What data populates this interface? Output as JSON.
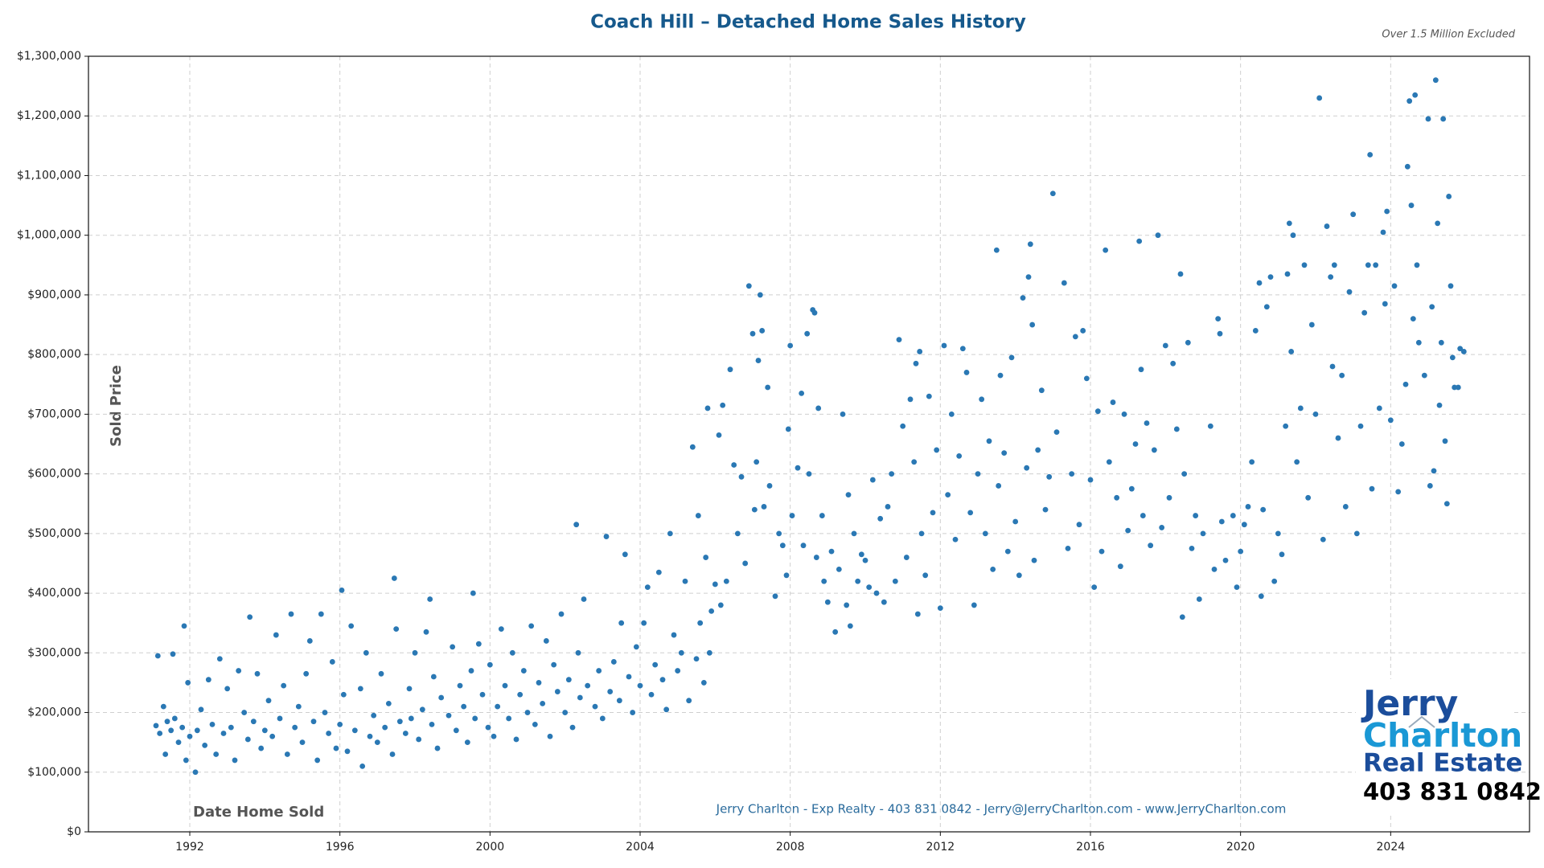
{
  "chart_data": {
    "type": "scatter",
    "title": "Coach Hill – Detached Home Sales History",
    "note": "Over 1.5 Million Excluded",
    "x_label": "Date Home Sold",
    "y_label": "Sold Price",
    "footer": "Jerry Charlton - Exp Realty - 403 831 0842 - Jerry@JerryCharlton.com - www.JerryCharlton.com",
    "logo": [
      "Jerry",
      "Charlton",
      "Real Estate",
      "403 831 0842"
    ],
    "color": "#2a78b4",
    "grid": true,
    "xlim": [
      1989.3,
      2027.7
    ],
    "ylim": [
      0,
      1300000
    ],
    "xticks": [
      1992,
      1996,
      2000,
      2004,
      2008,
      2012,
      2016,
      2020,
      2024
    ],
    "yticks": [
      {
        "value": 0,
        "label": "$0"
      },
      {
        "value": 100000,
        "label": "$100,000"
      },
      {
        "value": 200000,
        "label": "$200,000"
      },
      {
        "value": 300000,
        "label": "$300,000"
      },
      {
        "value": 400000,
        "label": "$400,000"
      },
      {
        "value": 500000,
        "label": "$500,000"
      },
      {
        "value": 600000,
        "label": "$600,000"
      },
      {
        "value": 700000,
        "label": "$700,000"
      },
      {
        "value": 800000,
        "label": "$800,000"
      },
      {
        "value": 900000,
        "label": "$900,000"
      },
      {
        "value": 1000000,
        "label": "$1,000,000"
      },
      {
        "value": 1100000,
        "label": "$1,100,000"
      },
      {
        "value": 1200000,
        "label": "$1,200,000"
      },
      {
        "value": 1300000,
        "label": "$1,300,000"
      }
    ],
    "x": [
      1991.1,
      1991.15,
      1991.2,
      1991.3,
      1991.35,
      1991.4,
      1991.5,
      1991.55,
      1991.6,
      1991.7,
      1991.8,
      1991.9,
      1991.95,
      1992.0,
      1991.85,
      1992.15,
      1992.2,
      1992.3,
      1992.4,
      1992.5,
      1992.6,
      1992.7,
      1992.8,
      1992.9,
      1993.0,
      1993.1,
      1993.2,
      1993.3,
      1993.45,
      1993.55,
      1993.6,
      1993.7,
      1993.8,
      1993.9,
      1994.0,
      1994.1,
      1994.2,
      1994.3,
      1994.4,
      1994.5,
      1994.6,
      1994.7,
      1994.8,
      1994.9,
      1995.0,
      1995.1,
      1995.2,
      1995.3,
      1995.4,
      1995.5,
      1995.6,
      1995.7,
      1995.8,
      1995.9,
      1996.0,
      1996.1,
      1996.2,
      1996.3,
      1996.4,
      1996.55,
      1996.6,
      1996.7,
      1996.05,
      1996.8,
      1996.9,
      1997.0,
      1997.1,
      1997.2,
      1997.3,
      1997.4,
      1997.5,
      1997.6,
      1997.45,
      1997.75,
      1997.85,
      1997.9,
      1998.0,
      1998.1,
      1998.2,
      1998.3,
      1998.45,
      1998.5,
      1998.6,
      1998.7,
      1998.4,
      1998.9,
      1999.0,
      1999.1,
      1999.2,
      1999.3,
      1999.4,
      1999.5,
      1999.6,
      1999.7,
      1999.8,
      1999.55,
      1999.95,
      2000.0,
      2000.1,
      2000.2,
      2000.3,
      2000.4,
      2000.5,
      2000.6,
      2000.7,
      2000.8,
      2000.9,
      2001.0,
      2001.1,
      2001.2,
      2001.3,
      2001.4,
      2001.5,
      2001.6,
      2001.7,
      2001.8,
      2001.9,
      2002.0,
      2002.1,
      2002.2,
      2002.35,
      2002.4,
      2002.5,
      2002.6,
      2002.3,
      2002.8,
      2002.9,
      2003.0,
      2003.1,
      2003.2,
      2003.3,
      2003.45,
      2003.5,
      2003.6,
      2003.7,
      2003.8,
      2003.9,
      2004.0,
      2004.1,
      2004.2,
      2004.3,
      2004.4,
      2004.5,
      2004.6,
      2004.7,
      2004.8,
      2004.9,
      2005.0,
      2005.1,
      2005.2,
      2005.3,
      2005.4,
      2005.5,
      2005.55,
      2005.6,
      2005.7,
      2005.75,
      2005.8,
      2005.85,
      2005.9,
      2006.0,
      2006.1,
      2006.15,
      2006.2,
      2006.3,
      2006.4,
      2006.5,
      2006.6,
      2006.7,
      2006.8,
      2006.9,
      2007.0,
      2007.05,
      2007.1,
      2007.15,
      2007.2,
      2007.25,
      2007.3,
      2007.4,
      2007.45,
      2007.6,
      2007.7,
      2007.8,
      2007.9,
      2007.95,
      2008.0,
      2008.05,
      2008.2,
      2008.3,
      2008.35,
      2008.45,
      2008.5,
      2008.6,
      2008.65,
      2008.7,
      2008.75,
      2008.85,
      2008.9,
      2009.0,
      2009.1,
      2009.2,
      2009.3,
      2009.4,
      2009.5,
      2009.55,
      2009.6,
      2009.7,
      2009.8,
      2009.9,
      2010.0,
      2010.1,
      2010.2,
      2010.3,
      2010.4,
      2010.5,
      2010.6,
      2010.7,
      2010.8,
      2010.9,
      2011.0,
      2011.1,
      2011.2,
      2011.3,
      2011.35,
      2011.4,
      2011.45,
      2011.5,
      2011.6,
      2011.7,
      2011.8,
      2011.9,
      2012.0,
      2012.1,
      2012.2,
      2012.3,
      2012.4,
      2012.5,
      2012.6,
      2012.7,
      2012.8,
      2012.9,
      2013.0,
      2013.1,
      2013.2,
      2013.3,
      2013.4,
      2013.5,
      2013.55,
      2013.6,
      2013.7,
      2013.8,
      2013.9,
      2014.0,
      2014.1,
      2014.2,
      2014.3,
      2014.35,
      2014.4,
      2014.45,
      2014.5,
      2014.6,
      2014.7,
      2014.8,
      2014.9,
      2015.0,
      2015.1,
      2015.3,
      2015.4,
      2015.5,
      2015.6,
      2015.7,
      2015.8,
      2015.9,
      2016.0,
      2016.1,
      2016.2,
      2016.3,
      2016.4,
      2016.5,
      2016.6,
      2016.7,
      2016.8,
      2016.9,
      2017.0,
      2017.1,
      2017.2,
      2017.3,
      2017.35,
      2017.4,
      2017.5,
      2017.6,
      2017.7,
      2017.8,
      2017.9,
      2018.0,
      2018.1,
      2018.2,
      2018.3,
      2018.4,
      2018.45,
      2018.5,
      2018.6,
      2018.7,
      2018.8,
      2018.9,
      2019.0,
      2019.2,
      2019.3,
      2019.4,
      2019.45,
      2019.5,
      2019.6,
      2019.8,
      2019.9,
      2020.0,
      2020.1,
      2020.2,
      2020.3,
      2020.4,
      2020.5,
      2020.55,
      2020.6,
      2020.7,
      2020.8,
      2020.9,
      2021.0,
      2021.1,
      2021.2,
      2021.25,
      2021.3,
      2021.35,
      2021.4,
      2021.5,
      2021.6,
      2021.7,
      2021.8,
      2021.9,
      2022.0,
      2022.1,
      2022.2,
      2022.3,
      2022.4,
      2022.45,
      2022.5,
      2022.6,
      2022.7,
      2022.8,
      2022.9,
      2023.0,
      2023.1,
      2023.2,
      2023.3,
      2023.4,
      2023.45,
      2023.5,
      2023.6,
      2023.7,
      2023.8,
      2023.85,
      2023.9,
      2024.0,
      2024.1,
      2024.2,
      2024.3,
      2024.4,
      2024.45,
      2024.5,
      2024.55,
      2024.6,
      2024.65,
      2024.7,
      2024.75,
      2024.9,
      2025.0,
      2025.05,
      2025.1,
      2025.15,
      2025.2,
      2025.25,
      2025.3,
      2025.35,
      2025.4,
      2025.45,
      2025.5,
      2025.55,
      2025.6,
      2025.65,
      2025.7,
      2025.8,
      2025.85,
      2025.95
    ],
    "values": [
      178000,
      295000,
      165000,
      210000,
      130000,
      185000,
      170000,
      298000,
      190000,
      150000,
      175000,
      120000,
      250000,
      160000,
      345000,
      100000,
      170000,
      205000,
      145000,
      255000,
      180000,
      130000,
      290000,
      165000,
      240000,
      175000,
      120000,
      270000,
      200000,
      155000,
      360000,
      185000,
      265000,
      140000,
      170000,
      220000,
      160000,
      330000,
      190000,
      245000,
      130000,
      365000,
      175000,
      210000,
      150000,
      265000,
      320000,
      185000,
      120000,
      365000,
      200000,
      165000,
      285000,
      140000,
      180000,
      230000,
      135000,
      345000,
      170000,
      240000,
      110000,
      300000,
      405000,
      160000,
      195000,
      150000,
      265000,
      175000,
      215000,
      130000,
      340000,
      185000,
      425000,
      165000,
      240000,
      190000,
      300000,
      155000,
      205000,
      335000,
      180000,
      260000,
      140000,
      225000,
      390000,
      195000,
      310000,
      170000,
      245000,
      210000,
      150000,
      270000,
      190000,
      315000,
      230000,
      400000,
      175000,
      280000,
      160000,
      210000,
      340000,
      245000,
      190000,
      300000,
      155000,
      230000,
      270000,
      200000,
      345000,
      180000,
      250000,
      215000,
      320000,
      160000,
      280000,
      235000,
      365000,
      200000,
      255000,
      175000,
      300000,
      225000,
      390000,
      245000,
      515000,
      210000,
      270000,
      190000,
      495000,
      235000,
      285000,
      220000,
      350000,
      465000,
      260000,
      200000,
      310000,
      245000,
      350000,
      410000,
      230000,
      280000,
      435000,
      255000,
      205000,
      500000,
      330000,
      270000,
      300000,
      420000,
      220000,
      645000,
      290000,
      530000,
      350000,
      250000,
      460000,
      710000,
      300000,
      370000,
      415000,
      665000,
      380000,
      715000,
      420000,
      775000,
      615000,
      500000,
      595000,
      450000,
      915000,
      835000,
      540000,
      620000,
      790000,
      900000,
      840000,
      545000,
      745000,
      580000,
      395000,
      500000,
      480000,
      430000,
      675000,
      815000,
      530000,
      610000,
      735000,
      480000,
      835000,
      600000,
      875000,
      870000,
      460000,
      710000,
      530000,
      420000,
      385000,
      470000,
      335000,
      440000,
      700000,
      380000,
      565000,
      345000,
      500000,
      420000,
      465000,
      455000,
      410000,
      590000,
      400000,
      525000,
      385000,
      545000,
      600000,
      420000,
      825000,
      680000,
      460000,
      725000,
      620000,
      785000,
      365000,
      805000,
      500000,
      430000,
      730000,
      535000,
      640000,
      375000,
      815000,
      565000,
      700000,
      490000,
      630000,
      810000,
      770000,
      535000,
      380000,
      600000,
      725000,
      500000,
      655000,
      440000,
      975000,
      580000,
      765000,
      635000,
      470000,
      795000,
      520000,
      430000,
      895000,
      610000,
      930000,
      985000,
      850000,
      455000,
      640000,
      740000,
      540000,
      595000,
      1070000,
      670000,
      920000,
      475000,
      600000,
      830000,
      515000,
      840000,
      760000,
      590000,
      410000,
      705000,
      470000,
      975000,
      620000,
      720000,
      560000,
      445000,
      700000,
      505000,
      575000,
      650000,
      990000,
      775000,
      530000,
      685000,
      480000,
      640000,
      1000000,
      510000,
      815000,
      560000,
      785000,
      675000,
      935000,
      360000,
      600000,
      820000,
      475000,
      530000,
      390000,
      500000,
      680000,
      440000,
      860000,
      835000,
      520000,
      455000,
      530000,
      410000,
      470000,
      515000,
      545000,
      620000,
      840000,
      920000,
      395000,
      540000,
      880000,
      930000,
      420000,
      500000,
      465000,
      680000,
      935000,
      1020000,
      805000,
      1000000,
      620000,
      710000,
      950000,
      560000,
      850000,
      700000,
      1230000,
      490000,
      1015000,
      930000,
      780000,
      950000,
      660000,
      765000,
      545000,
      905000,
      1035000,
      500000,
      680000,
      870000,
      950000,
      1135000,
      575000,
      950000,
      710000,
      1005000,
      885000,
      1040000,
      690000,
      915000,
      570000,
      650000,
      750000,
      1115000,
      1225000,
      1050000,
      860000,
      1235000,
      950000,
      820000,
      765000,
      1195000,
      580000,
      880000,
      605000,
      1260000,
      1020000,
      715000,
      820000,
      1195000,
      655000,
      550000,
      1065000,
      915000,
      795000,
      745000,
      745000,
      810000,
      805000
    ]
  }
}
